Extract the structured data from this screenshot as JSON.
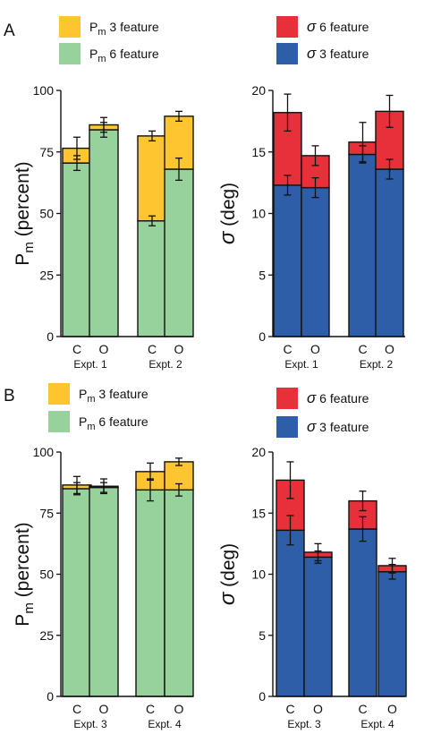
{
  "panels": [
    {
      "letter": "A"
    },
    {
      "letter": "B"
    }
  ],
  "colors": {
    "pm3": "#fdc52f",
    "pm6": "#97d29d",
    "sig6": "#e8303a",
    "sig3": "#2f5ea8"
  },
  "chart_data": [
    {
      "id": "A-pm",
      "panel": "A",
      "type": "bar",
      "stacked": true,
      "ylabel": "P_m (percent)",
      "ylabel_main": "P",
      "ylabel_sub": "m",
      "ylabel_rest": " (percent)",
      "ylim": [
        0,
        100
      ],
      "yticks": [
        0,
        25,
        50,
        75,
        100
      ],
      "groups": [
        "Expt. 1",
        "Expt. 2"
      ],
      "categories": [
        "C",
        "O",
        "C",
        "O"
      ],
      "legend": [
        {
          "main": "P",
          "sub": "m",
          "rest": " 3 feature",
          "series": "pm3"
        },
        {
          "main": "P",
          "sub": "m",
          "rest": " 6 feature",
          "series": "pm6"
        }
      ],
      "series": [
        {
          "key": "pm6",
          "name": "Pm 6 feature",
          "values": [
            70.5,
            84,
            47,
            68
          ],
          "errors": [
            3,
            3,
            2,
            4.5
          ]
        },
        {
          "key": "pm3",
          "name": "Pm 3 feature",
          "values": [
            6,
            2,
            34.5,
            21.5
          ],
          "errors": [
            4.5,
            3,
            2,
            2
          ]
        }
      ]
    },
    {
      "id": "A-sigma",
      "panel": "A",
      "type": "bar",
      "stacked": true,
      "ylabel": "σ (deg)",
      "ylabel_main": "σ",
      "ylabel_sub": "",
      "ylabel_rest": " (deg)",
      "ylim": [
        0,
        20
      ],
      "yticks": [
        0,
        5,
        10,
        15,
        20
      ],
      "groups": [
        "Expt. 1",
        "Expt. 2"
      ],
      "categories": [
        "C",
        "O",
        "C",
        "O"
      ],
      "legend": [
        {
          "main": "σ",
          "sub": "",
          "rest": " 6 feature",
          "series": "sig6"
        },
        {
          "main": "σ",
          "sub": "",
          "rest": " 3 feature",
          "series": "sig3"
        }
      ],
      "series": [
        {
          "key": "sig3",
          "name": "σ 3 feature",
          "values": [
            12.3,
            12.1,
            14.8,
            13.6
          ],
          "errors": [
            0.8,
            0.8,
            0.7,
            0.8
          ]
        },
        {
          "key": "sig6",
          "name": "σ 6 feature",
          "values": [
            5.9,
            2.6,
            1.0,
            4.7
          ],
          "errors": [
            1.5,
            0.8,
            1.6,
            1.3
          ]
        }
      ]
    },
    {
      "id": "B-pm",
      "panel": "B",
      "type": "bar",
      "stacked": true,
      "ylabel": "P_m (percent)",
      "ylabel_main": "P",
      "ylabel_sub": "m",
      "ylabel_rest": " (percent)",
      "ylim": [
        0,
        100
      ],
      "yticks": [
        0,
        25,
        50,
        75,
        100
      ],
      "groups": [
        "Expt. 3",
        "Expt. 4"
      ],
      "categories": [
        "C",
        "O",
        "C",
        "O"
      ],
      "legend": [
        {
          "main": "P",
          "sub": "m",
          "rest": " 3 feature",
          "series": "pm3"
        },
        {
          "main": "P",
          "sub": "m",
          "rest": " 6 feature",
          "series": "pm6"
        }
      ],
      "series": [
        {
          "key": "pm6",
          "name": "Pm 6 feature",
          "values": [
            85,
            85.5,
            84.5,
            84.5
          ],
          "errors": [
            2.5,
            2,
            4.5,
            2.5
          ]
        },
        {
          "key": "pm3",
          "name": "Pm 3 feature",
          "values": [
            1.5,
            0.5,
            7.5,
            11.5
          ],
          "errors": [
            3.5,
            3,
            3.5,
            1.5
          ]
        }
      ]
    },
    {
      "id": "B-sigma",
      "panel": "B",
      "type": "bar",
      "stacked": true,
      "ylabel": "σ (deg)",
      "ylabel_main": "σ",
      "ylabel_sub": "",
      "ylabel_rest": " (deg)",
      "ylim": [
        0,
        20
      ],
      "yticks": [
        0,
        5,
        10,
        15,
        20
      ],
      "groups": [
        "Expt. 3",
        "Expt. 4"
      ],
      "categories": [
        "C",
        "O",
        "C",
        "O"
      ],
      "legend": [
        {
          "main": "σ",
          "sub": "",
          "rest": " 6 feature",
          "series": "sig6"
        },
        {
          "main": "σ",
          "sub": "",
          "rest": " 3 feature",
          "series": "sig3"
        }
      ],
      "series": [
        {
          "key": "sig3",
          "name": "σ 3 feature",
          "values": [
            13.6,
            11.4,
            13.7,
            10.2
          ],
          "errors": [
            1.2,
            0.5,
            1.0,
            0.6
          ]
        },
        {
          "key": "sig6",
          "name": "σ 6 feature",
          "values": [
            4.1,
            0.4,
            2.3,
            0.5
          ],
          "errors": [
            1.5,
            0.7,
            0.8,
            0.6
          ]
        }
      ]
    }
  ]
}
